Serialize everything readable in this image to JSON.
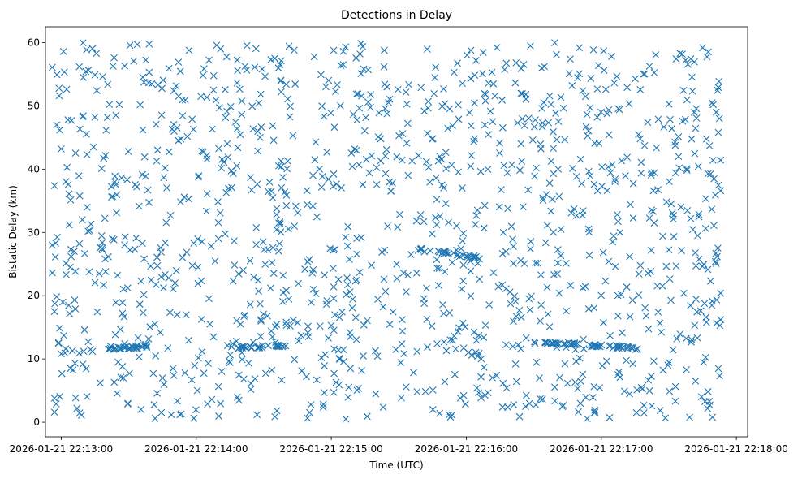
{
  "chart_data": {
    "type": "scatter",
    "title": "Detections in Delay",
    "xlabel": "Time (UTC)",
    "ylabel": "Bistatic Delay (km)",
    "x_unit": "time",
    "x_range": [
      "2026-01-21 22:12:53",
      "2026-01-21 22:18:05"
    ],
    "xticks": [
      "2026-01-21 22:13:00",
      "2026-01-21 22:14:00",
      "2026-01-21 22:15:00",
      "2026-01-21 22:16:00",
      "2026-01-21 22:17:00",
      "2026-01-21 22:18:00"
    ],
    "ylim": [
      -2.3,
      62.5
    ],
    "yticks": [
      0,
      10,
      20,
      30,
      40,
      50,
      60
    ],
    "grid": false,
    "legend": "none",
    "marker": "x",
    "color": "#1f77b4",
    "point_count": 1450,
    "series": [
      {
        "points": [
          [
            "2026-01-21 22:12:56",
            56.1
          ],
          [
            "2026-01-21 22:12:57",
            37.4
          ],
          [
            "2026-01-21 22:12:56",
            28.0
          ],
          [
            "2026-01-21 22:12:57",
            17.5
          ],
          [
            "2026-01-21 22:12:57",
            3.8
          ],
          [
            "2026-01-21 22:12:57",
            1.6
          ],
          [
            "2026-01-21 22:13:00",
            10.8
          ],
          [
            "2026-01-21 22:13:02",
            11.6
          ],
          [
            "2026-01-21 22:13:05",
            11.3
          ],
          [
            "2026-01-21 22:13:08",
            10.9
          ],
          [
            "2026-01-21 22:13:10",
            11.2
          ],
          [
            "2026-01-21 22:13:13",
            11.5
          ],
          [
            "2026-01-21 22:13:00",
            43.2
          ],
          [
            "2026-01-21 22:13:01",
            58.6
          ],
          [
            "2026-01-21 22:13:03",
            47.8
          ],
          [
            "2026-01-21 22:13:04",
            24.5
          ],
          [
            "2026-01-21 22:13:07",
            2.2
          ],
          [
            "2026-01-21 22:13:09",
            1.1
          ],
          [
            "2026-01-21 22:13:12",
            30.2
          ],
          [
            "2026-01-21 22:13:15",
            54.9
          ],
          [
            "2026-01-21 22:13:18",
            40.1
          ],
          [
            "2026-01-21 22:13:22",
            12.0
          ],
          [
            "2026-01-21 22:13:24",
            11.7
          ],
          [
            "2026-01-21 22:13:26",
            11.8
          ],
          [
            "2026-01-21 22:13:28",
            11.9
          ],
          [
            "2026-01-21 22:13:30",
            11.6
          ],
          [
            "2026-01-21 22:13:32",
            11.8
          ],
          [
            "2026-01-21 22:13:34",
            12.1
          ],
          [
            "2026-01-21 22:13:36",
            11.9
          ],
          [
            "2026-01-21 22:13:38",
            12.0
          ],
          [
            "2026-01-21 22:13:45",
            7.0
          ],
          [
            "2026-01-21 22:13:50",
            7.4
          ],
          [
            "2026-01-21 22:13:55",
            7.8
          ],
          [
            "2026-01-21 22:14:05",
            2.9
          ],
          [
            "2026-01-21 22:14:20",
            11.8
          ],
          [
            "2026-01-21 22:14:24",
            12.0
          ],
          [
            "2026-01-21 22:14:28",
            11.9
          ],
          [
            "2026-01-21 22:14:32",
            12.1
          ],
          [
            "2026-01-21 22:14:36",
            12.0
          ],
          [
            "2026-01-21 22:14:40",
            15.8
          ],
          [
            "2026-01-21 22:14:55",
            15.2
          ],
          [
            "2026-01-21 22:15:00",
            15.3
          ],
          [
            "2026-01-21 22:15:40",
            27.3
          ],
          [
            "2026-01-21 22:15:44",
            27.1
          ],
          [
            "2026-01-21 22:15:48",
            26.9
          ],
          [
            "2026-01-21 22:15:52",
            26.6
          ],
          [
            "2026-01-21 22:15:56",
            26.4
          ],
          [
            "2026-01-21 22:16:00",
            26.2
          ],
          [
            "2026-01-21 22:16:04",
            26.0
          ],
          [
            "2026-01-21 22:16:36",
            12.4
          ],
          [
            "2026-01-21 22:16:40",
            12.5
          ],
          [
            "2026-01-21 22:16:44",
            12.4
          ],
          [
            "2026-01-21 22:16:48",
            12.3
          ],
          [
            "2026-01-21 22:16:55",
            12.2
          ],
          [
            "2026-01-21 22:17:00",
            12.2
          ],
          [
            "2026-01-21 22:17:04",
            12.1
          ],
          [
            "2026-01-21 22:17:08",
            12.0
          ],
          [
            "2026-01-21 22:17:12",
            11.9
          ],
          [
            "2026-01-21 22:17:16",
            11.6
          ],
          [
            "2026-01-21 22:17:45",
            59.2
          ],
          [
            "2026-01-21 22:17:48",
            3.3
          ],
          [
            "2026-01-21 22:17:50",
            31.1
          ],
          [
            "2026-01-21 22:17:51",
            25.1
          ],
          [
            "2026-01-21 22:17:52",
            45.8
          ],
          [
            "2026-01-21 22:17:53",
            20.4
          ],
          [
            "2026-01-21 22:17:53",
            16.2
          ],
          [
            "2026-01-21 22:17:52",
            52.9
          ],
          [
            "2026-01-21 22:17:53",
            36.6
          ],
          [
            "2026-01-21 22:17:52",
            8.5
          ]
        ]
      }
    ]
  }
}
